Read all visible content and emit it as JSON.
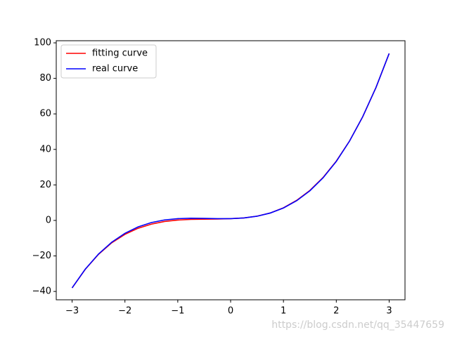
{
  "chart_data": {
    "type": "line",
    "x": [
      -3,
      -2.75,
      -2.5,
      -2.25,
      -2,
      -1.75,
      -1.5,
      -1.25,
      -1,
      -0.75,
      -0.5,
      -0.25,
      0,
      0.25,
      0.5,
      0.75,
      1,
      1.25,
      1.5,
      1.75,
      2,
      2.25,
      2.5,
      2.75,
      3
    ],
    "series": [
      {
        "name": "fitting curve",
        "color": "#ff0000",
        "values": [
          -38,
          -27.5,
          -19.1,
          -12.6,
          -7.85,
          -4.4,
          -2.1,
          -0.6,
          0.2,
          0.6,
          0.7,
          0.8,
          1,
          1.4,
          2.4,
          4.2,
          7.1,
          11.3,
          16.9,
          24.2,
          33.4,
          44.7,
          58.4,
          74.8,
          94
        ]
      },
      {
        "name": "real curve",
        "color": "#0000ff",
        "values": [
          -38,
          -27.42,
          -18.92,
          -12.27,
          -7.25,
          -3.63,
          -1.2,
          0.27,
          1,
          1.22,
          1.14,
          0.99,
          1,
          1.38,
          2.36,
          4.16,
          7,
          11.11,
          16.7,
          24.01,
          33.25,
          44.65,
          58.42,
          74.8,
          94
        ]
      }
    ],
    "xlim": [
      -3.3,
      3.3
    ],
    "xticks": [
      {
        "value": -3,
        "label": "−3"
      },
      {
        "value": -2,
        "label": "−2"
      },
      {
        "value": -1,
        "label": "−1"
      },
      0,
      1,
      2,
      3
    ],
    "ylim": [
      -44.7,
      101.2
    ],
    "yticks": [
      {
        "value": -40,
        "label": "−40"
      },
      {
        "value": -20,
        "label": "−20"
      },
      0,
      20,
      40,
      60,
      80,
      100
    ],
    "legend": "upper left",
    "watermark": "https://blog.csdn.net/qq_35447659"
  }
}
